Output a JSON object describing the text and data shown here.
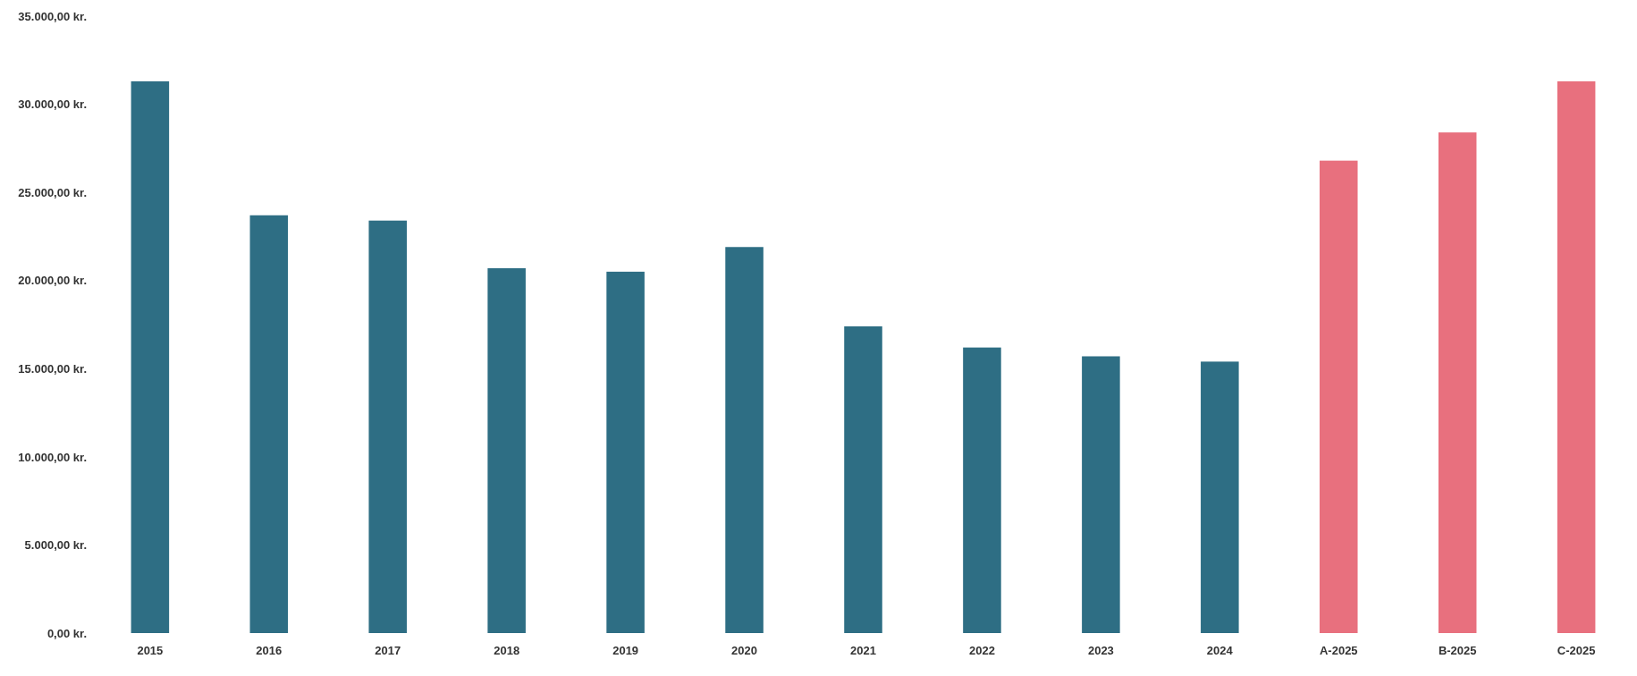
{
  "chart_data": {
    "type": "bar",
    "categories": [
      "2015",
      "2016",
      "2017",
      "2018",
      "2019",
      "2020",
      "2021",
      "2022",
      "2023",
      "2024",
      "A-2025",
      "B-2025",
      "C-2025"
    ],
    "values": [
      31300,
      23700,
      23400,
      20700,
      20500,
      21900,
      17400,
      16200,
      15700,
      15400,
      26800,
      28400,
      31300
    ],
    "colors": [
      "#2e6e84",
      "#2e6e84",
      "#2e6e84",
      "#2e6e84",
      "#2e6e84",
      "#2e6e84",
      "#2e6e84",
      "#2e6e84",
      "#2e6e84",
      "#2e6e84",
      "#e8707e",
      "#e8707e",
      "#e8707e"
    ],
    "ylim": [
      0,
      35000
    ],
    "yticks": [
      {
        "value": 0,
        "label": "0,00 kr."
      },
      {
        "value": 5000,
        "label": "5.000,00 kr."
      },
      {
        "value": 10000,
        "label": "10.000,00 kr."
      },
      {
        "value": 15000,
        "label": "15.000,00 kr."
      },
      {
        "value": 20000,
        "label": "20.000,00 kr."
      },
      {
        "value": 25000,
        "label": "25.000,00 kr."
      },
      {
        "value": 30000,
        "label": "30.000,00 kr."
      },
      {
        "value": 35000,
        "label": "35.000,00 kr."
      }
    ],
    "grid": false
  }
}
